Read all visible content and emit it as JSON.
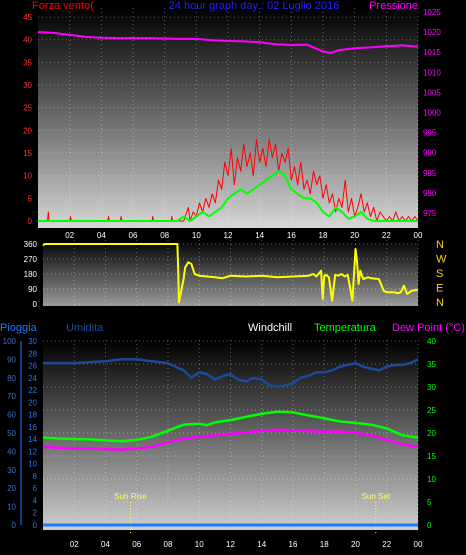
{
  "colors": {
    "wind": "#ff0000",
    "gust": "#00ff00",
    "pressure": "#ff00ff",
    "direction": "#ffff00",
    "rain": "#1e78ff",
    "humidity": "#1a4a9a",
    "temperature": "#00ff00",
    "dewpoint": "#ff00ff",
    "sun": "#ffff66",
    "title": "#2020ff"
  },
  "chart_data": [
    {
      "type": "line",
      "title": "24 hour graph day : 02 Luglio 2016",
      "left_label": "Forza vento(",
      "right_label": "Pressione",
      "x_ticks": [
        "02",
        "04",
        "06",
        "08",
        "10",
        "12",
        "14",
        "16",
        "18",
        "20",
        "22",
        "00"
      ],
      "x_range": [
        0,
        24
      ],
      "y_left_ticks": [
        "0",
        "5",
        "10",
        "15",
        "20",
        "25",
        "30",
        "35",
        "40",
        "45"
      ],
      "y_left_range": [
        0,
        47
      ],
      "y_right_ticks": [
        "975",
        "980",
        "985",
        "990",
        "995",
        "1000",
        "1005",
        "1010",
        "1015",
        "1020",
        "1025"
      ],
      "y_right_range": [
        973,
        1026
      ],
      "series": [
        {
          "name": "pressure",
          "axis": "right",
          "x": [
            0,
            1,
            2,
            3,
            4,
            5,
            6,
            7,
            8,
            9,
            10,
            11,
            12,
            13,
            14,
            15,
            16,
            17,
            17.5,
            18,
            18.5,
            19,
            20,
            21,
            22,
            23,
            24
          ],
          "y": [
            1020,
            1019.8,
            1019.3,
            1018.8,
            1018.6,
            1018.5,
            1018.5,
            1018.5,
            1018.4,
            1018.3,
            1018.3,
            1018,
            1017.8,
            1017.7,
            1017.5,
            1017,
            1016.8,
            1016.9,
            1016,
            1015.2,
            1014.8,
            1015.5,
            1016,
            1016.2,
            1016.5,
            1016.7,
            1016.4
          ]
        },
        {
          "name": "wind",
          "axis": "left",
          "x": [
            0,
            0.6,
            0.65,
            0.7,
            2,
            2.05,
            2.1,
            4.4,
            4.45,
            4.5,
            5.2,
            5.25,
            5.3,
            7.2,
            7.25,
            7.3,
            8.4,
            8.45,
            8.5,
            9.2,
            9.3,
            9.5,
            9.6,
            9.8,
            10,
            10.2,
            10.4,
            10.6,
            10.8,
            11,
            11.2,
            11.4,
            11.6,
            11.8,
            12,
            12.2,
            12.4,
            12.6,
            12.8,
            13,
            13.2,
            13.4,
            13.6,
            13.8,
            14,
            14.2,
            14.4,
            14.6,
            14.8,
            15,
            15.2,
            15.4,
            15.6,
            15.8,
            16,
            16.2,
            16.4,
            16.6,
            16.8,
            17,
            17.2,
            17.4,
            17.6,
            17.8,
            18,
            18.2,
            18.4,
            18.6,
            18.8,
            19,
            19.2,
            19.4,
            19.6,
            19.8,
            20,
            20.2,
            20.4,
            20.6,
            20.8,
            21,
            21.2,
            21.4,
            21.6,
            21.8,
            22,
            22.2,
            22.4,
            22.6,
            22.8,
            23,
            23.2,
            23.4,
            23.6,
            23.8,
            24
          ],
          "y": [
            0,
            0,
            2,
            0,
            0,
            1,
            0,
            0,
            1,
            0,
            0,
            1,
            0,
            0,
            1,
            0,
            0,
            1,
            0,
            0,
            1,
            3,
            0,
            2,
            1,
            4,
            2,
            5,
            3,
            6,
            4,
            9,
            7,
            13,
            10,
            16,
            8,
            14,
            11,
            17,
            12,
            15,
            10,
            18,
            13,
            16,
            12,
            18,
            14,
            17,
            11,
            15,
            13,
            16,
            9,
            12,
            8,
            13,
            7,
            9,
            6,
            11,
            8,
            10,
            5,
            8,
            4,
            6,
            2,
            5,
            3,
            9,
            2,
            5,
            1,
            3,
            6,
            2,
            4,
            1,
            3,
            0,
            2,
            1,
            0,
            1,
            0,
            2,
            0,
            1,
            0,
            1,
            0,
            1,
            0
          ]
        },
        {
          "name": "gust",
          "axis": "left",
          "x": [
            0,
            8.5,
            8.8,
            9.2,
            9.6,
            10,
            10.4,
            10.8,
            11.2,
            11.6,
            12,
            12.4,
            12.8,
            13.2,
            13.6,
            14,
            14.4,
            14.8,
            15.2,
            15.6,
            16,
            16.4,
            16.8,
            17.2,
            17.6,
            18,
            18.4,
            18.8,
            19.2,
            19.6,
            20,
            20.4,
            20.8,
            21.2,
            24
          ],
          "y": [
            0,
            0,
            0,
            1,
            0,
            1,
            2,
            1,
            2,
            3,
            5,
            6,
            7,
            6,
            7,
            8,
            9,
            10,
            11,
            10,
            7,
            6,
            5,
            5,
            4,
            2,
            1,
            3,
            2,
            0.5,
            1,
            2,
            0.5,
            0,
            0
          ]
        }
      ]
    },
    {
      "type": "line",
      "title": "",
      "x_range": [
        0,
        24
      ],
      "y_left_ticks": [
        "0",
        "90",
        "180",
        "270",
        "360"
      ],
      "y_left_range": [
        0,
        360
      ],
      "y_right_ticks": [
        "N",
        "W",
        "S",
        "E",
        "N"
      ],
      "series": [
        {
          "name": "direction",
          "x": [
            0,
            0.1,
            8.6,
            8.65,
            8.7,
            9.0,
            9.1,
            9.3,
            9.5,
            9.7,
            10,
            10.5,
            11,
            11.5,
            12,
            13,
            14,
            15,
            16,
            17,
            17.3,
            17.5,
            17.8,
            17.9,
            18,
            18.1,
            18.3,
            18.5,
            18.7,
            18.9,
            19.1,
            19.3,
            19.5,
            19.8,
            20,
            20.1,
            20.2,
            20.3,
            20.5,
            20.8,
            21,
            21.5,
            21.8,
            22,
            22.5,
            22.7,
            22.9,
            23.1,
            23.3,
            23.6,
            24
          ],
          "y": [
            350,
            360,
            360,
            200,
            10,
            150,
            220,
            250,
            240,
            180,
            170,
            165,
            160,
            155,
            170,
            165,
            170,
            160,
            165,
            170,
            180,
            165,
            200,
            30,
            170,
            175,
            160,
            20,
            175,
            170,
            180,
            165,
            175,
            20,
            330,
            250,
            120,
            200,
            150,
            160,
            155,
            150,
            80,
            70,
            70,
            65,
            70,
            110,
            60,
            80,
            85
          ]
        }
      ]
    },
    {
      "type": "line",
      "title": "",
      "labels": {
        "rain": "Pioggia",
        "humidity": "Umidita",
        "windchill": "Windchill",
        "temperature": "Temperatura",
        "dewpoint": "Dew Point (°C)"
      },
      "x_ticks": [
        "02",
        "04",
        "06",
        "08",
        "10",
        "12",
        "14",
        "16",
        "18",
        "20",
        "22",
        "00"
      ],
      "x_range": [
        0,
        24
      ],
      "y_rain_ticks": [
        "0",
        "2",
        "4",
        "6",
        "8",
        "10",
        "12",
        "14",
        "16",
        "18",
        "20",
        "22",
        "24",
        "26",
        "28",
        "30"
      ],
      "y_humidity_ticks": [
        "0",
        "10",
        "20",
        "30",
        "40",
        "50",
        "60",
        "70",
        "80",
        "90",
        "100"
      ],
      "y_right_ticks": [
        "0",
        "5",
        "10",
        "15",
        "20",
        "25",
        "30",
        "35",
        "40"
      ],
      "y_right_range": [
        0,
        40
      ],
      "sun_rise_label": "Sun Rise",
      "sun_rise_x": 5.6,
      "sun_set_label": "Sun Set",
      "sun_set_x": 21.3,
      "series": [
        {
          "name": "humidity",
          "axis": "humidity",
          "x": [
            0,
            2,
            4,
            5,
            6,
            7,
            8,
            8.5,
            9,
            9.5,
            10,
            10.5,
            11,
            11.5,
            12,
            12.5,
            13,
            13.5,
            14,
            14.5,
            15,
            15.5,
            16,
            16.5,
            17,
            17.5,
            18,
            18.5,
            19,
            19.5,
            20,
            20.5,
            21,
            21.5,
            22,
            22.5,
            23,
            23.5,
            24
          ],
          "y": [
            88,
            88,
            89,
            90,
            90,
            89,
            88,
            86,
            84,
            80,
            83,
            82,
            79,
            81,
            82,
            79,
            78,
            80,
            79,
            76,
            75,
            76,
            77,
            80,
            81,
            83,
            83,
            84,
            86,
            87,
            88,
            86,
            85,
            84,
            86,
            87,
            87,
            88,
            90
          ]
        },
        {
          "name": "temperature",
          "axis": "right",
          "x": [
            0,
            1,
            2,
            3,
            4,
            5,
            6,
            7,
            8,
            9,
            10,
            10.5,
            11,
            12,
            13,
            14,
            15,
            16,
            17,
            18,
            19,
            20,
            21,
            22,
            23,
            24
          ],
          "y": [
            19,
            18.8,
            18.7,
            18.6,
            18.4,
            18.2,
            18.5,
            19.2,
            20.5,
            21.8,
            22,
            21.7,
            22.3,
            22.8,
            23.5,
            24.2,
            24.6,
            24.5,
            23.8,
            23.2,
            22.5,
            22.2,
            21.8,
            21,
            19.5,
            19
          ]
        },
        {
          "name": "dewpoint",
          "axis": "right",
          "x": [
            0,
            1,
            2,
            3,
            4,
            5,
            6,
            7,
            8,
            9,
            10,
            11,
            12,
            13,
            14,
            15,
            16,
            17,
            18,
            19,
            20,
            21,
            22,
            23,
            24
          ],
          "y": [
            17,
            16.8,
            16.7,
            16.6,
            16.5,
            16.4,
            16.6,
            17,
            18,
            18.8,
            19.2,
            19.5,
            19.8,
            20.1,
            20.5,
            20.7,
            20.6,
            20.4,
            20.3,
            20.3,
            20.1,
            19.5,
            18.5,
            17.5,
            17
          ]
        },
        {
          "name": "rain",
          "axis": "rain",
          "x": [
            0,
            24
          ],
          "y": [
            0,
            0
          ]
        }
      ]
    }
  ]
}
